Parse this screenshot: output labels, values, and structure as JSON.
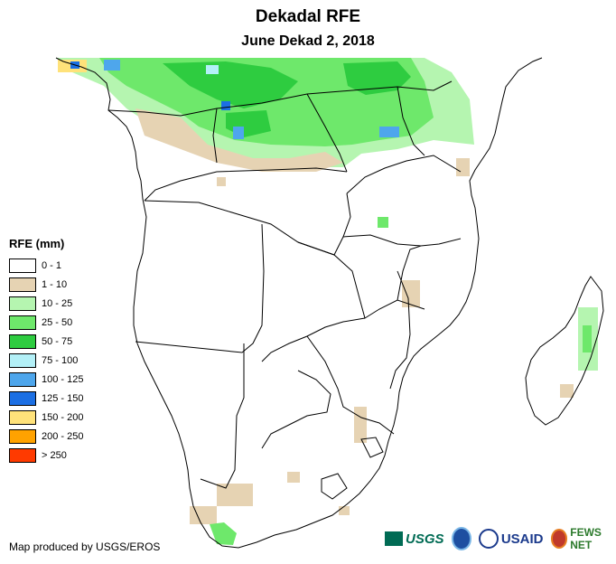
{
  "map": {
    "title": "Dekadal RFE",
    "subtitle": "June Dekad 2, 2018",
    "credit": "Map produced by USGS/EROS"
  },
  "legend": {
    "title": "RFE (mm)",
    "items": [
      {
        "label": "0 - 1",
        "color": "#ffffff"
      },
      {
        "label": "1 - 10",
        "color": "#e6d3b3"
      },
      {
        "label": "10 - 25",
        "color": "#b5f5b0"
      },
      {
        "label": "25 - 50",
        "color": "#6ee86b"
      },
      {
        "label": "50 - 75",
        "color": "#2ecc40"
      },
      {
        "label": "75 - 100",
        "color": "#b3f0f7"
      },
      {
        "label": "100 - 125",
        "color": "#4ea6ec"
      },
      {
        "label": "125 - 150",
        "color": "#1c6fe3"
      },
      {
        "label": "150 - 200",
        "color": "#ffe27a"
      },
      {
        "label": "200 - 250",
        "color": "#ffa200"
      },
      {
        "label": "> 250",
        "color": "#ff3a00"
      }
    ]
  },
  "logos": {
    "usgs": "USGS",
    "usaid": "USAID",
    "fews": "FEWS NET"
  }
}
